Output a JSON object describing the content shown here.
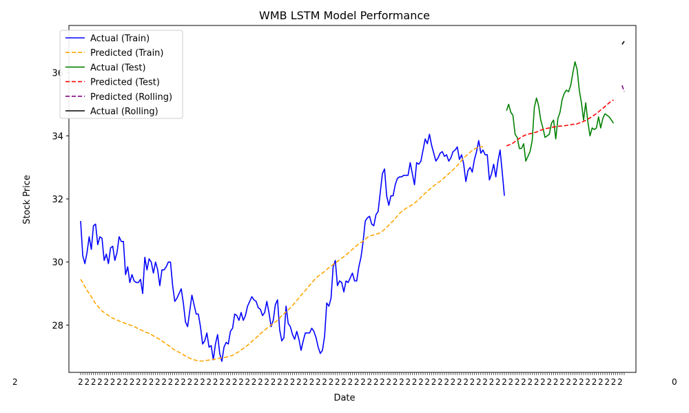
{
  "chart_data": {
    "type": "line",
    "title": "WMB LSTM Model Performance",
    "xlabel": "Date",
    "ylabel": "Stock Price",
    "ylim": [
      26.5,
      37.5
    ],
    "yticks": [
      28,
      30,
      32,
      34,
      36
    ],
    "ytick_labels": [
      "28",
      "30",
      "32",
      "34",
      "36"
    ],
    "x_tick_labels_note": "dense overlapping date labels (illegible)",
    "grid": false,
    "legend_position": "upper-left",
    "series": [
      {
        "name": "Actual (Train)",
        "color": "#0000ff",
        "dash": "solid",
        "x_start": 0,
        "values": [
          31.3,
          30.2,
          29.95,
          30.3,
          30.8,
          30.4,
          31.15,
          31.2,
          30.55,
          30.8,
          30.75,
          30.05,
          30.25,
          29.95,
          30.45,
          30.5,
          30.05,
          30.3,
          30.8,
          30.65,
          30.65,
          29.6,
          29.85,
          29.35,
          29.6,
          29.4,
          29.35,
          29.35,
          29.45,
          29.0,
          30.15,
          29.75,
          30.1,
          30.0,
          29.65,
          30.0,
          29.75,
          29.25,
          29.75,
          29.75,
          29.85,
          30.0,
          30.0,
          29.25,
          28.75,
          28.85,
          29.0,
          29.15,
          28.7,
          28.1,
          27.95,
          28.45,
          28.95,
          28.65,
          28.35,
          28.35,
          27.95,
          27.4,
          27.5,
          27.75,
          27.3,
          27.35,
          26.9,
          27.4,
          27.7,
          27.1,
          26.85,
          27.3,
          27.45,
          27.4,
          27.8,
          27.9,
          28.35,
          28.3,
          28.15,
          28.4,
          28.15,
          28.3,
          28.6,
          28.75,
          28.9,
          28.8,
          28.75,
          28.55,
          28.5,
          28.3,
          28.4,
          28.75,
          28.4,
          27.95,
          28.15,
          28.65,
          28.8,
          27.85,
          27.5,
          27.6,
          28.6,
          28.05,
          27.95,
          27.7,
          27.55,
          27.8,
          27.55,
          27.2,
          27.5,
          27.75,
          27.75,
          27.75,
          27.9,
          27.8,
          27.6,
          27.3,
          27.1,
          27.2,
          27.65,
          28.7,
          28.6,
          28.85,
          29.85,
          30.05,
          29.25,
          29.4,
          29.35,
          29.05,
          29.4,
          29.35,
          29.5,
          29.65,
          29.4,
          29.4,
          29.85,
          30.15,
          30.65,
          31.3,
          31.4,
          31.45,
          31.2,
          31.15,
          31.5,
          31.6,
          32.2,
          32.8,
          32.95,
          32.1,
          31.8,
          32.1,
          32.1,
          32.45,
          32.65,
          32.7,
          32.7,
          32.75,
          32.75,
          32.75,
          33.15,
          32.8,
          32.45,
          33.15,
          33.1,
          33.2,
          33.55,
          33.9,
          33.75,
          34.05,
          33.7,
          33.45,
          33.2,
          33.3,
          33.45,
          33.5,
          33.35,
          33.4,
          33.2,
          33.3,
          33.5,
          33.55,
          33.65,
          33.25,
          33.4,
          33.1,
          32.55,
          32.9,
          33.0,
          32.85,
          33.25,
          33.5,
          33.85,
          33.45,
          33.55,
          33.4,
          33.4,
          32.6,
          32.8,
          33.1,
          32.7,
          33.2,
          33.55,
          32.85,
          32.1
        ]
      },
      {
        "name": "Predicted (Train)",
        "color": "#ffa500",
        "dash": "dashed",
        "x_start": 0,
        "values": [
          29.45,
          29.35,
          29.22,
          29.1,
          29.0,
          28.9,
          28.78,
          28.68,
          28.6,
          28.52,
          28.45,
          28.4,
          28.35,
          28.3,
          28.26,
          28.22,
          28.19,
          28.16,
          28.13,
          28.1,
          28.08,
          28.05,
          28.03,
          28.0,
          27.98,
          27.95,
          27.92,
          27.88,
          27.85,
          27.82,
          27.78,
          27.76,
          27.74,
          27.7,
          27.66,
          27.62,
          27.58,
          27.55,
          27.5,
          27.45,
          27.4,
          27.36,
          27.3,
          27.25,
          27.21,
          27.17,
          27.14,
          27.1,
          27.06,
          27.02,
          26.99,
          26.95,
          26.92,
          26.9,
          26.88,
          26.87,
          26.86,
          26.86,
          26.87,
          26.88,
          26.89,
          26.9,
          26.91,
          26.92,
          26.93,
          26.95,
          26.96,
          26.97,
          26.98,
          27.0,
          27.02,
          27.04,
          27.08,
          27.12,
          27.16,
          27.21,
          27.26,
          27.31,
          27.36,
          27.42,
          27.48,
          27.54,
          27.6,
          27.66,
          27.73,
          27.78,
          27.84,
          27.9,
          27.95,
          28.0,
          28.05,
          28.1,
          28.15,
          28.22,
          28.3,
          28.36,
          28.42,
          28.48,
          28.55,
          28.62,
          28.7,
          28.78,
          28.86,
          28.94,
          29.02,
          29.1,
          29.18,
          29.26,
          29.34,
          29.42,
          29.48,
          29.55,
          29.6,
          29.65,
          29.7,
          29.76,
          29.82,
          29.87,
          29.92,
          29.97,
          30.02,
          30.07,
          30.12,
          30.17,
          30.22,
          30.28,
          30.34,
          30.4,
          30.46,
          30.52,
          30.58,
          30.62,
          30.66,
          30.72,
          30.78,
          30.82,
          30.84,
          30.86,
          30.88,
          30.9,
          30.93,
          30.98,
          31.03,
          31.1,
          31.17,
          31.24,
          31.3,
          31.38,
          31.46,
          31.54,
          31.6,
          31.65,
          31.7,
          31.74,
          31.78,
          31.82,
          31.87,
          31.92,
          31.98,
          32.05,
          32.12,
          32.18,
          32.24,
          32.3,
          32.36,
          32.42,
          32.46,
          32.51,
          32.56,
          32.62,
          32.68,
          32.74,
          32.8,
          32.86,
          32.92,
          32.99,
          33.06,
          33.14,
          33.22,
          33.3,
          33.36,
          33.42,
          33.48,
          33.54,
          33.58,
          33.62,
          33.64,
          33.65,
          33.66
        ]
      },
      {
        "name": "Actual (Test)",
        "color": "#008000",
        "dash": "solid",
        "x_start": 199,
        "values": [
          34.8,
          35.0,
          34.75,
          34.65,
          34.05,
          33.95,
          33.6,
          33.6,
          33.75,
          33.2,
          33.35,
          33.5,
          33.85,
          34.9,
          35.2,
          34.95,
          34.5,
          34.25,
          33.95,
          34.0,
          34.05,
          34.4,
          34.5,
          33.9,
          34.55,
          34.75,
          35.15,
          35.35,
          35.45,
          35.4,
          35.6,
          36.0,
          36.35,
          36.1,
          35.45,
          35.05,
          34.5,
          35.05,
          34.45,
          34.0,
          34.25,
          34.2,
          34.25,
          34.6,
          34.25,
          34.55,
          34.7,
          34.65,
          34.6,
          34.5,
          34.4
        ]
      },
      {
        "name": "Predicted (Test)",
        "color": "#ff0000",
        "dash": "dashed",
        "x_start": 199,
        "values": [
          33.68,
          33.71,
          33.73,
          33.77,
          33.82,
          33.87,
          33.92,
          33.96,
          34.0,
          34.03,
          34.05,
          34.07,
          34.08,
          34.1,
          34.12,
          34.15,
          34.18,
          34.2,
          34.22,
          34.24,
          34.25,
          34.27,
          34.28,
          34.29,
          34.3,
          34.31,
          34.31,
          34.32,
          34.33,
          34.34,
          34.35,
          34.37,
          34.36,
          34.38,
          34.41,
          34.43,
          34.46,
          34.49,
          34.53,
          34.57,
          34.61,
          34.66,
          34.71,
          34.76,
          34.82,
          34.87,
          34.93,
          34.99,
          35.05,
          35.1,
          35.14
        ]
      },
      {
        "name": "Predicted (Rolling)",
        "color": "#800080",
        "dash": "dashed",
        "x_start": 253,
        "values": [
          35.6,
          35.4
        ]
      },
      {
        "name": "Actual (Rolling)",
        "color": "#000000",
        "dash": "solid",
        "x_start": 253,
        "values": [
          36.9,
          37.0
        ]
      }
    ],
    "x_total_points": 255
  }
}
